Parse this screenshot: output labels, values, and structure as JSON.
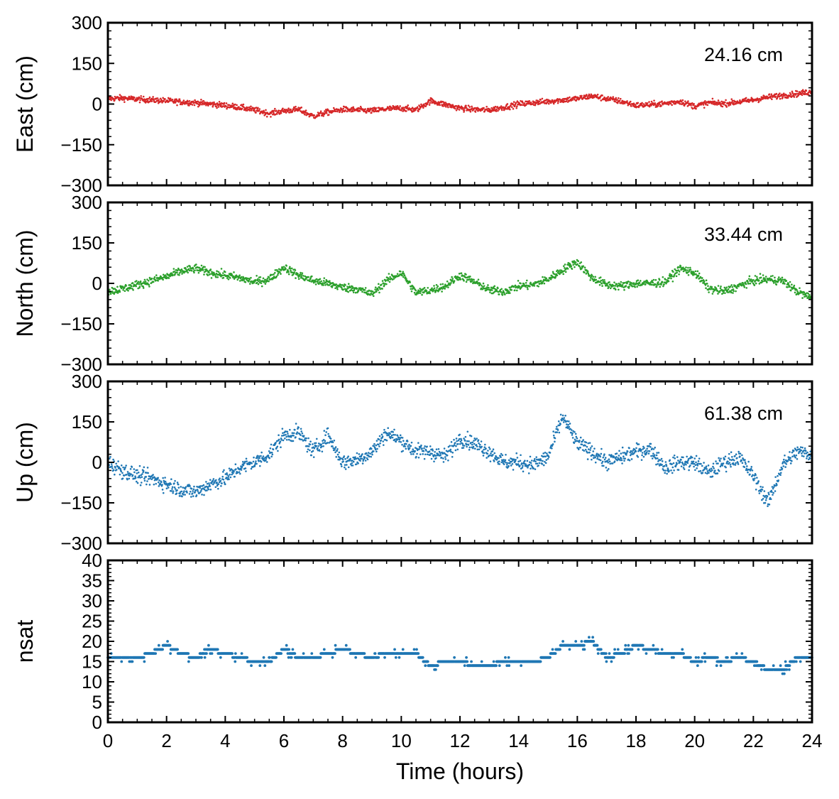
{
  "chart_data": [
    {
      "type": "scatter",
      "panel": "east",
      "ylabel": "East (cm)",
      "annotation": "24.16 cm",
      "color": "#d62728",
      "ylim": [
        -300,
        300
      ],
      "yticks": [
        -300,
        -150,
        0,
        150,
        300
      ],
      "ytick_labels": [
        "−300",
        "−150",
        "0",
        "150",
        "300"
      ],
      "xlim": [
        0,
        24
      ],
      "series": [
        {
          "x": [
            0,
            0.5,
            1,
            1.5,
            2,
            2.5,
            3,
            3.5,
            4,
            4.5,
            5,
            5.5,
            6,
            6.5,
            7,
            7.5,
            8,
            8.5,
            9,
            9.5,
            10,
            10.5,
            11,
            11.5,
            12,
            12.5,
            13,
            13.5,
            14,
            14.5,
            15,
            15.5,
            16,
            16.5,
            17,
            17.5,
            18,
            18.5,
            19,
            19.5,
            20,
            20.5,
            21,
            21.5,
            22,
            22.5,
            23,
            23.5,
            24
          ],
          "y": [
            20,
            22,
            18,
            15,
            12,
            8,
            5,
            0,
            -5,
            -12,
            -22,
            -35,
            -25,
            -20,
            -45,
            -30,
            -20,
            -22,
            -25,
            -18,
            -15,
            -22,
            12,
            -2,
            -15,
            -20,
            -22,
            -12,
            0,
            5,
            10,
            15,
            20,
            30,
            20,
            10,
            -5,
            -2,
            2,
            10,
            -8,
            5,
            2,
            8,
            15,
            25,
            32,
            38,
            45
          ]
        }
      ]
    },
    {
      "type": "scatter",
      "panel": "north",
      "ylabel": "North (cm)",
      "annotation": "33.44 cm",
      "color": "#2ca02c",
      "ylim": [
        -300,
        300
      ],
      "yticks": [
        -300,
        -150,
        0,
        150,
        300
      ],
      "ytick_labels": [
        "−300",
        "−150",
        "0",
        "150",
        "300"
      ],
      "xlim": [
        0,
        24
      ],
      "series": [
        {
          "x": [
            0,
            0.5,
            1,
            1.5,
            2,
            2.5,
            3,
            3.5,
            4,
            4.5,
            5,
            5.5,
            6,
            6.5,
            7,
            7.5,
            8,
            8.5,
            9,
            9.5,
            10,
            10.5,
            11,
            11.5,
            12,
            12.5,
            13,
            13.5,
            14,
            14.5,
            15,
            15.5,
            16,
            16.5,
            17,
            17.5,
            18,
            18.5,
            19,
            19.5,
            20,
            20.5,
            21,
            21.5,
            22,
            22.5,
            23,
            23.5,
            24
          ],
          "y": [
            -30,
            -20,
            -5,
            10,
            25,
            45,
            55,
            40,
            30,
            20,
            5,
            15,
            60,
            30,
            10,
            0,
            -15,
            -20,
            -40,
            10,
            40,
            -35,
            -25,
            -10,
            30,
            5,
            -25,
            -30,
            -10,
            -5,
            15,
            50,
            80,
            20,
            -5,
            -10,
            0,
            0,
            5,
            55,
            40,
            -20,
            -30,
            -10,
            10,
            15,
            10,
            -30,
            -55
          ]
        }
      ]
    },
    {
      "type": "scatter",
      "panel": "up",
      "ylabel": "Up (cm)",
      "annotation": "61.38 cm",
      "color": "#1f77b4",
      "ylim": [
        -300,
        300
      ],
      "yticks": [
        -300,
        -150,
        0,
        150,
        300
      ],
      "ytick_labels": [
        "−300",
        "−150",
        "0",
        "150",
        "300"
      ],
      "xlim": [
        0,
        24
      ],
      "series": [
        {
          "x": [
            0,
            0.5,
            1,
            1.5,
            2,
            2.5,
            3,
            3.5,
            4,
            4.5,
            5,
            5.5,
            6,
            6.5,
            7,
            7.5,
            8,
            8.5,
            9,
            9.5,
            10,
            10.5,
            11,
            11.5,
            12,
            12.5,
            13,
            13.5,
            14,
            14.5,
            15,
            15.5,
            16,
            16.5,
            17,
            17.5,
            18,
            18.5,
            19,
            19.5,
            20,
            20.5,
            21,
            21.5,
            22,
            22.5,
            23,
            23.5,
            24
          ],
          "y": [
            0,
            -30,
            -50,
            -60,
            -80,
            -100,
            -110,
            -80,
            -60,
            -20,
            0,
            30,
            100,
            110,
            40,
            100,
            0,
            10,
            40,
            110,
            80,
            40,
            40,
            20,
            90,
            70,
            40,
            0,
            0,
            -10,
            20,
            170,
            70,
            40,
            0,
            20,
            40,
            50,
            -20,
            0,
            0,
            -40,
            0,
            20,
            -50,
            -150,
            -10,
            40,
            30
          ]
        }
      ]
    },
    {
      "type": "scatter",
      "panel": "nsat",
      "ylabel": "nsat",
      "xlabel": "Time (hours)",
      "annotation": "",
      "color": "#1f77b4",
      "ylim": [
        0,
        40
      ],
      "yticks": [
        0,
        5,
        10,
        15,
        20,
        25,
        30,
        35,
        40
      ],
      "ytick_labels": [
        "0",
        "5",
        "10",
        "15",
        "20",
        "25",
        "30",
        "35",
        "40"
      ],
      "xlim": [
        0,
        24
      ],
      "xticks": [
        0,
        2,
        4,
        6,
        8,
        10,
        12,
        14,
        16,
        18,
        20,
        22,
        24
      ],
      "xtick_labels": [
        "0",
        "2",
        "4",
        "6",
        "8",
        "10",
        "12",
        "14",
        "16",
        "18",
        "20",
        "22",
        "24"
      ],
      "series": [
        {
          "x": [
            0,
            0.5,
            1,
            1.5,
            2,
            2.5,
            3,
            3.5,
            4,
            4.5,
            5,
            5.5,
            6,
            6.5,
            7,
            7.5,
            8,
            8.5,
            9,
            9.5,
            10,
            10.5,
            11,
            11.5,
            12,
            12.5,
            13,
            13.5,
            14,
            14.5,
            15,
            15.5,
            16,
            16.5,
            17,
            17.5,
            18,
            18.5,
            19,
            19.5,
            20,
            20.5,
            21,
            21.5,
            22,
            22.5,
            23,
            23.5,
            24
          ],
          "y": [
            16,
            16,
            16,
            17,
            19,
            17,
            16,
            18,
            17,
            16,
            15,
            15,
            18,
            16,
            16,
            17,
            18,
            17,
            16,
            17,
            17,
            17,
            14,
            15,
            15,
            14,
            14,
            15,
            15,
            15,
            16,
            19,
            19,
            20,
            16,
            17,
            19,
            18,
            17,
            17,
            15,
            16,
            15,
            16,
            15,
            13,
            13,
            16,
            16
          ]
        }
      ]
    }
  ]
}
